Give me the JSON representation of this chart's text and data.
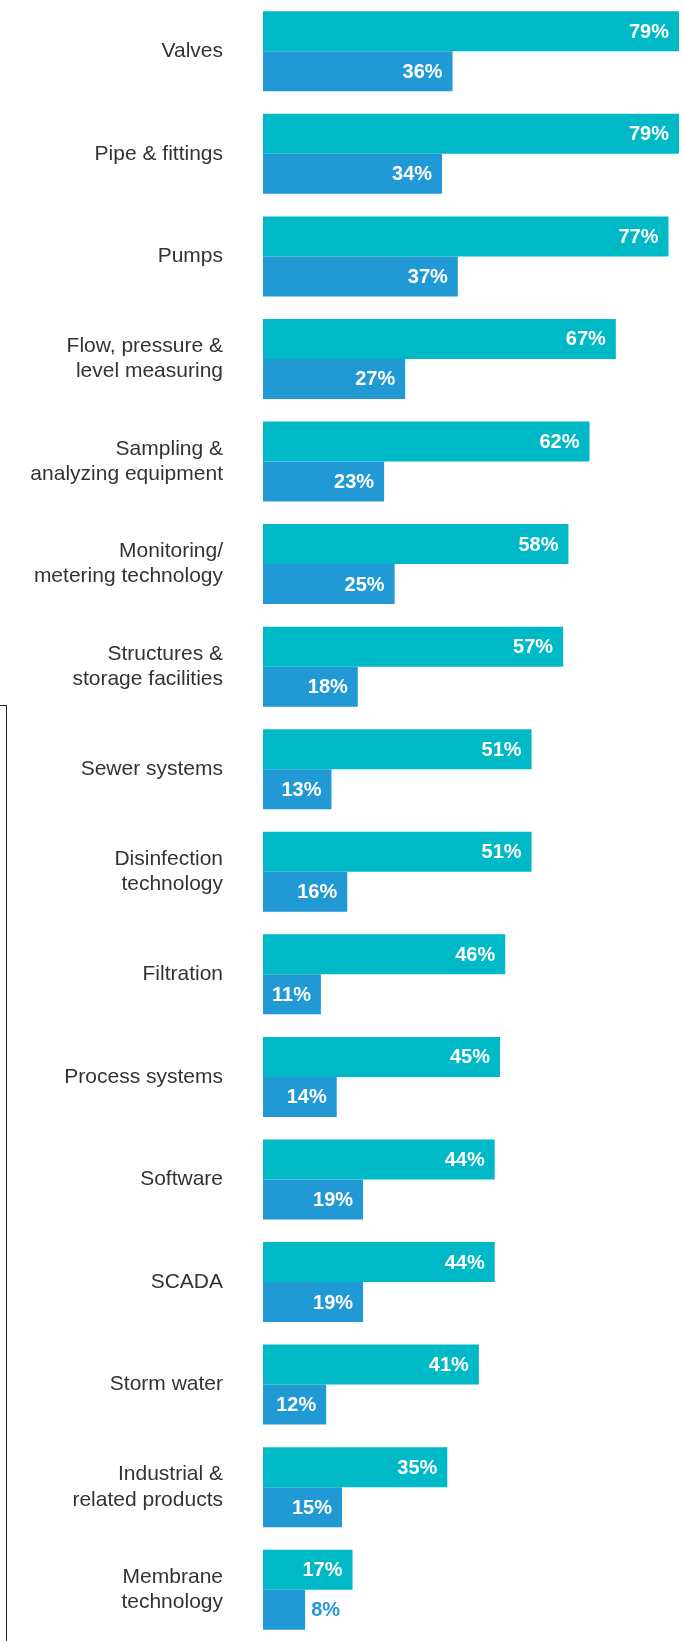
{
  "chart_data": {
    "type": "bar",
    "orientation": "horizontal",
    "tick_labels": "y",
    "legend": false,
    "categories": [
      "Valves",
      "Pipe & fittings",
      "Pumps",
      "Flow, pressure & level measuring",
      "Sampling & analyzing equipment",
      "Monitoring/ metering technology",
      "Structures & storage facilities",
      "Sewer systems",
      "Disinfection technology",
      "Filtration",
      "Process systems",
      "Software",
      "SCADA",
      "Storm water",
      "Industrial & related products",
      "Membrane technology"
    ],
    "xlim": [
      0,
      79
    ],
    "series": [
      {
        "color": "#00b9c6",
        "values": [
          79,
          79,
          77,
          67,
          62,
          58,
          57,
          51,
          51,
          46,
          45,
          44,
          44,
          41,
          35,
          17
        ],
        "value_labels": [
          "79%",
          "79%",
          "77%",
          "67%",
          "62%",
          "58%",
          "57%",
          "51%",
          "51%",
          "46%",
          "45%",
          "44%",
          "44%",
          "41%",
          "35%",
          "17%"
        ]
      },
      {
        "color": "#2199d5",
        "values": [
          36,
          34,
          37,
          27,
          23,
          25,
          18,
          13,
          16,
          11,
          14,
          19,
          19,
          12,
          15,
          8
        ],
        "value_labels": [
          "36%",
          "34%",
          "37%",
          "27%",
          "23%",
          "25%",
          "18%",
          "13%",
          "16%",
          "11%",
          "14%",
          "19%",
          "19%",
          "12%",
          "15%",
          "8%"
        ]
      }
    ]
  }
}
